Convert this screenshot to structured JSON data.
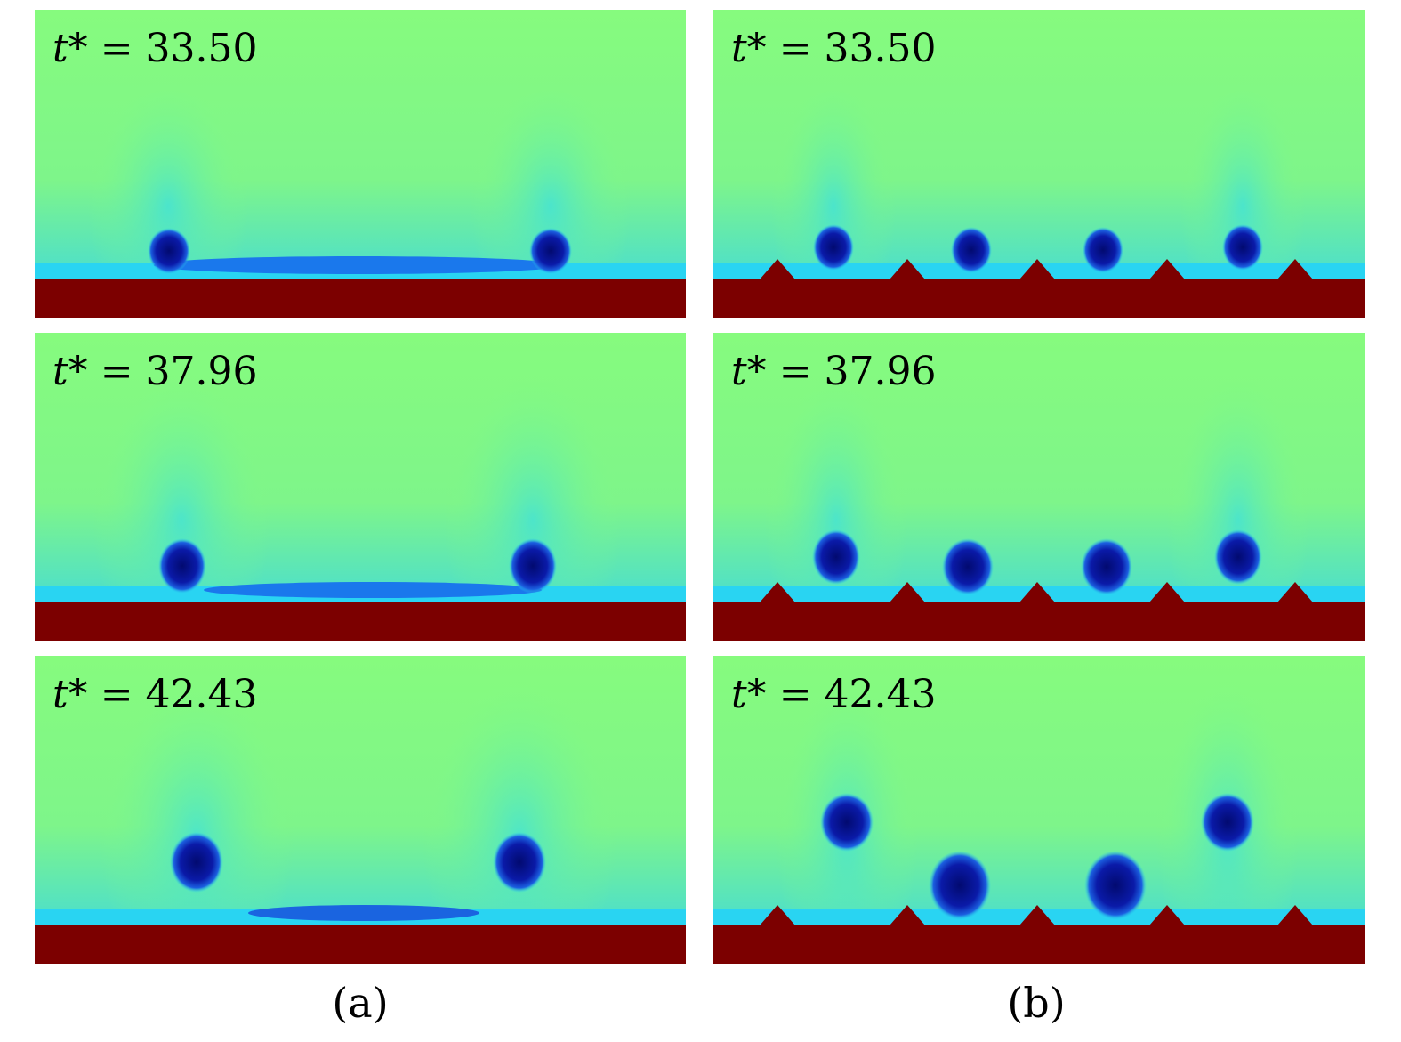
{
  "columns": [
    {
      "caption": "(a)",
      "substrate": "flat",
      "panels": [
        {
          "time_var": "t*",
          "time_value": "= 33.50"
        },
        {
          "time_var": "t*",
          "time_value": "= 37.96"
        },
        {
          "time_var": "t*",
          "time_value": "= 42.43"
        }
      ]
    },
    {
      "caption": "(b)",
      "substrate": "triangular-ridges",
      "panels": [
        {
          "time_var": "t*",
          "time_value": "= 33.50"
        },
        {
          "time_var": "t*",
          "time_value": "= 37.96"
        },
        {
          "time_var": "t*",
          "time_value": "= 42.43"
        }
      ]
    }
  ],
  "colors": {
    "background_liquid": "#86fb7e",
    "vapor_halo": "#1ec8f0",
    "bubble": "#0a1aa8",
    "bubble_core": "#020a70",
    "solid_wall": "#7c0000"
  }
}
